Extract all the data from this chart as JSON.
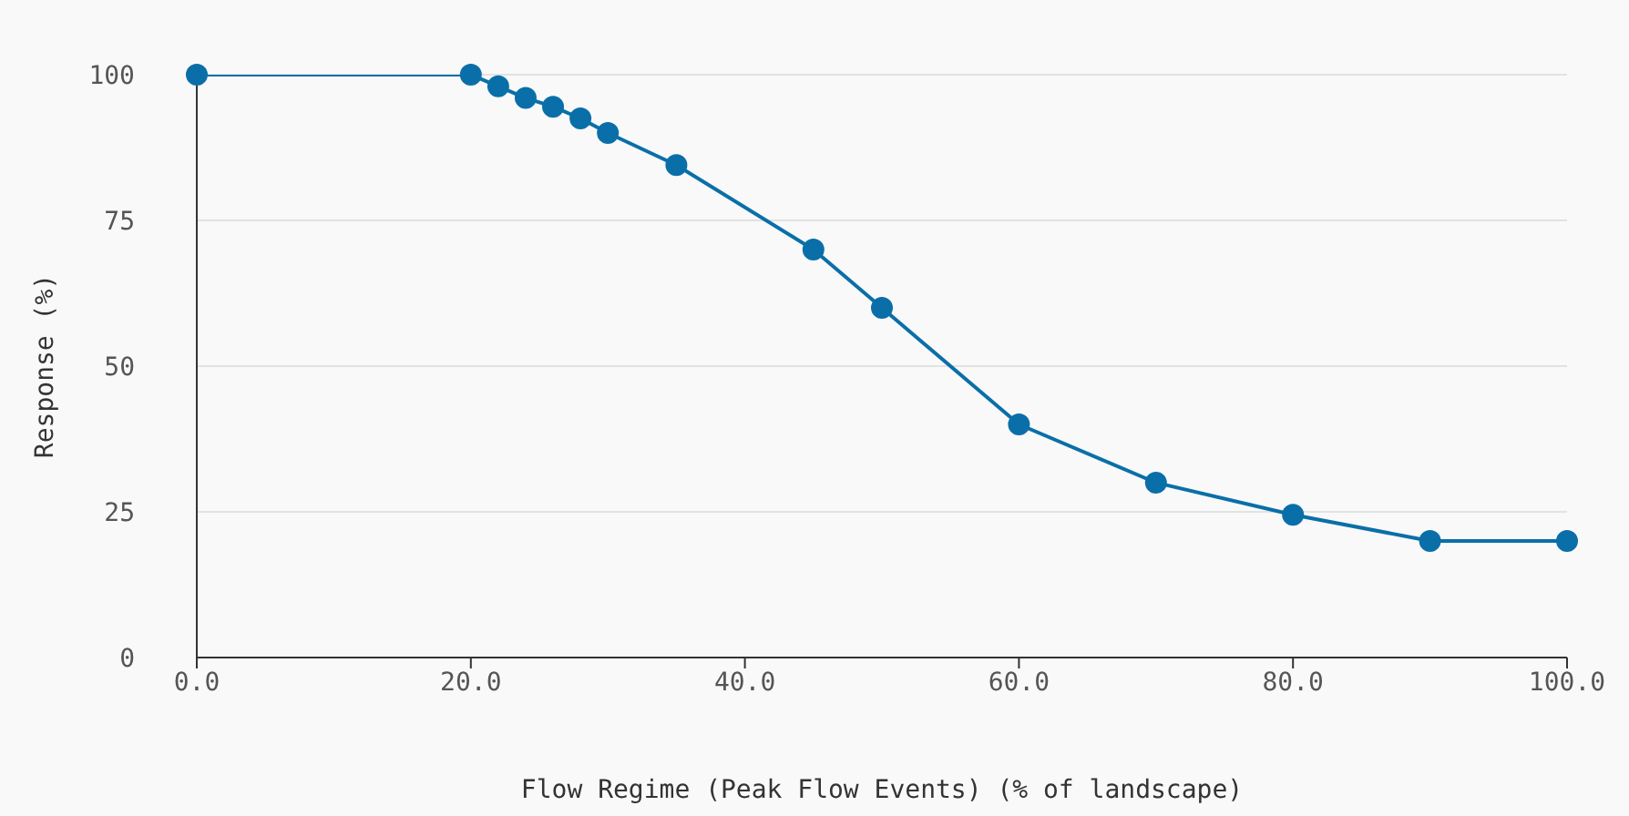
{
  "chart_data": {
    "type": "line",
    "xlabel": "Flow Regime (Peak Flow Events) (% of landscape)",
    "ylabel": "Response (%)",
    "x": [
      0,
      20,
      22,
      24,
      26,
      28,
      30,
      35,
      45,
      50,
      60,
      70,
      80,
      90,
      100
    ],
    "series": [
      {
        "color": "#0a6fa8",
        "values": [
          100,
          100,
          98,
          96,
          94.5,
          92.5,
          90,
          84.5,
          70,
          60,
          40,
          30,
          24.5,
          20,
          20
        ]
      }
    ],
    "xlim": [
      0,
      100
    ],
    "xticks": [
      {
        "value": 0,
        "label": "0.0"
      },
      {
        "value": 20,
        "label": "20.0"
      },
      {
        "value": 40,
        "label": "40.0"
      },
      {
        "value": 60,
        "label": "60.0"
      },
      {
        "value": 80,
        "label": "80.0"
      },
      {
        "value": 100,
        "label": "100.0"
      }
    ],
    "ylim": [
      0,
      100
    ],
    "yticks": [
      0,
      25,
      50,
      75,
      100
    ],
    "grid": "y",
    "legend": false,
    "marker": "circle",
    "line_style": "solid"
  }
}
